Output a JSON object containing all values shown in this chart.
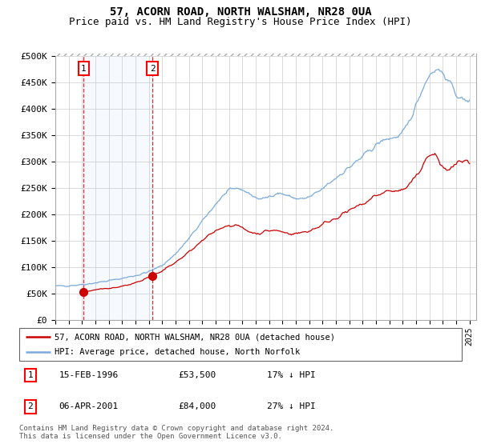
{
  "title": "57, ACORN ROAD, NORTH WALSHAM, NR28 0UA",
  "subtitle": "Price paid vs. HM Land Registry's House Price Index (HPI)",
  "ylabel_ticks": [
    "£0",
    "£50K",
    "£100K",
    "£150K",
    "£200K",
    "£250K",
    "£300K",
    "£350K",
    "£400K",
    "£450K",
    "£500K"
  ],
  "ytick_values": [
    0,
    50000,
    100000,
    150000,
    200000,
    250000,
    300000,
    350000,
    400000,
    450000,
    500000
  ],
  "ylim": [
    0,
    500000
  ],
  "xlim_start": 1994.0,
  "xlim_end": 2025.5,
  "sale1_date": 1996.12,
  "sale1_price": 53500,
  "sale1_label": "1",
  "sale2_date": 2001.27,
  "sale2_price": 84000,
  "sale2_label": "2",
  "background_color": "#ffffff",
  "grid_color": "#cccccc",
  "hpi_line_color": "#7aabdb",
  "price_line_color": "#cc0000",
  "vline_color": "#cc0000",
  "legend_line1": "57, ACORN ROAD, NORTH WALSHAM, NR28 0UA (detached house)",
  "legend_line2": "HPI: Average price, detached house, North Norfolk",
  "annotation1_date": "15-FEB-1996",
  "annotation1_price": "£53,500",
  "annotation1_hpi": "17% ↓ HPI",
  "annotation2_date": "06-APR-2001",
  "annotation2_price": "£84,000",
  "annotation2_hpi": "27% ↓ HPI",
  "footer": "Contains HM Land Registry data © Crown copyright and database right 2024.\nThis data is licensed under the Open Government Licence v3.0.",
  "title_fontsize": 10,
  "subtitle_fontsize": 9
}
